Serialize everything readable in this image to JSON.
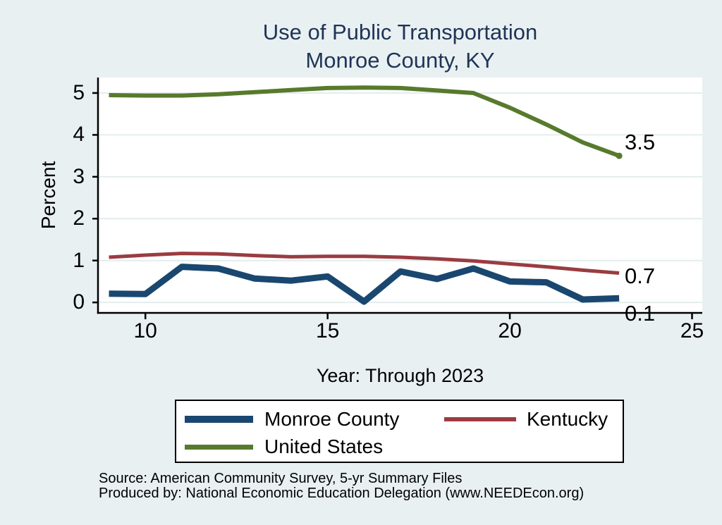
{
  "title": {
    "line1": "Use of Public Transportation",
    "line2": "Monroe County, KY"
  },
  "axes": {
    "ylabel": "Percent",
    "xlabel": "Year: Through 2023"
  },
  "legend": {
    "items": [
      {
        "label": "Monroe County"
      },
      {
        "label": "Kentucky"
      },
      {
        "label": "United States"
      }
    ]
  },
  "footer": {
    "source_line1": "Source: American Community Survey, 5-yr Summary Files",
    "source_line2": "Produced by: National Economic Education Delegation (www.NEEDEcon.org)"
  },
  "colors": {
    "background": "#e9f0f2",
    "plot_background": "#ffffff",
    "grid": "#e4edee",
    "axis": "#000000",
    "title": "#1f3456",
    "monroe_navy": "#1a476f",
    "kentucky_maroon": "#9a3c41",
    "us_olive": "#577a2c"
  },
  "chart_data": {
    "type": "line",
    "title": "Use of Public Transportation Monroe County, KY",
    "xlabel": "Year: Through 2023",
    "ylabel": "Percent",
    "x": [
      9,
      10,
      11,
      12,
      13,
      14,
      15,
      16,
      17,
      18,
      19,
      20,
      21,
      22,
      23
    ],
    "series": [
      {
        "name": "Monroe County",
        "color": "#1a476f",
        "width": 9,
        "end_label": "0.1",
        "end_marker": false,
        "values": [
          0.21,
          0.2,
          0.85,
          0.81,
          0.57,
          0.52,
          0.62,
          0.02,
          0.74,
          0.56,
          0.81,
          0.5,
          0.48,
          0.07,
          0.1
        ]
      },
      {
        "name": "Kentucky",
        "color": "#9a3c41",
        "width": 5,
        "end_label": "0.7",
        "end_marker": false,
        "values": [
          1.08,
          1.13,
          1.17,
          1.16,
          1.12,
          1.09,
          1.1,
          1.1,
          1.08,
          1.04,
          0.99,
          0.92,
          0.85,
          0.77,
          0.7
        ]
      },
      {
        "name": "United States",
        "color": "#577a2c",
        "width": 6,
        "end_label": "3.5",
        "end_marker": true,
        "values": [
          4.95,
          4.94,
          4.94,
          4.97,
          5.02,
          5.07,
          5.12,
          5.13,
          5.12,
          5.06,
          5.0,
          4.65,
          4.25,
          3.82,
          3.5
        ]
      }
    ],
    "xticks": [
      10,
      15,
      20,
      25
    ],
    "yticks": [
      0,
      1,
      2,
      3,
      4,
      5
    ],
    "xlim": [
      8.7,
      25.28
    ],
    "ylim": [
      -0.25,
      5.37
    ],
    "grid": "horizontal-only",
    "legend_position": "bottom"
  }
}
